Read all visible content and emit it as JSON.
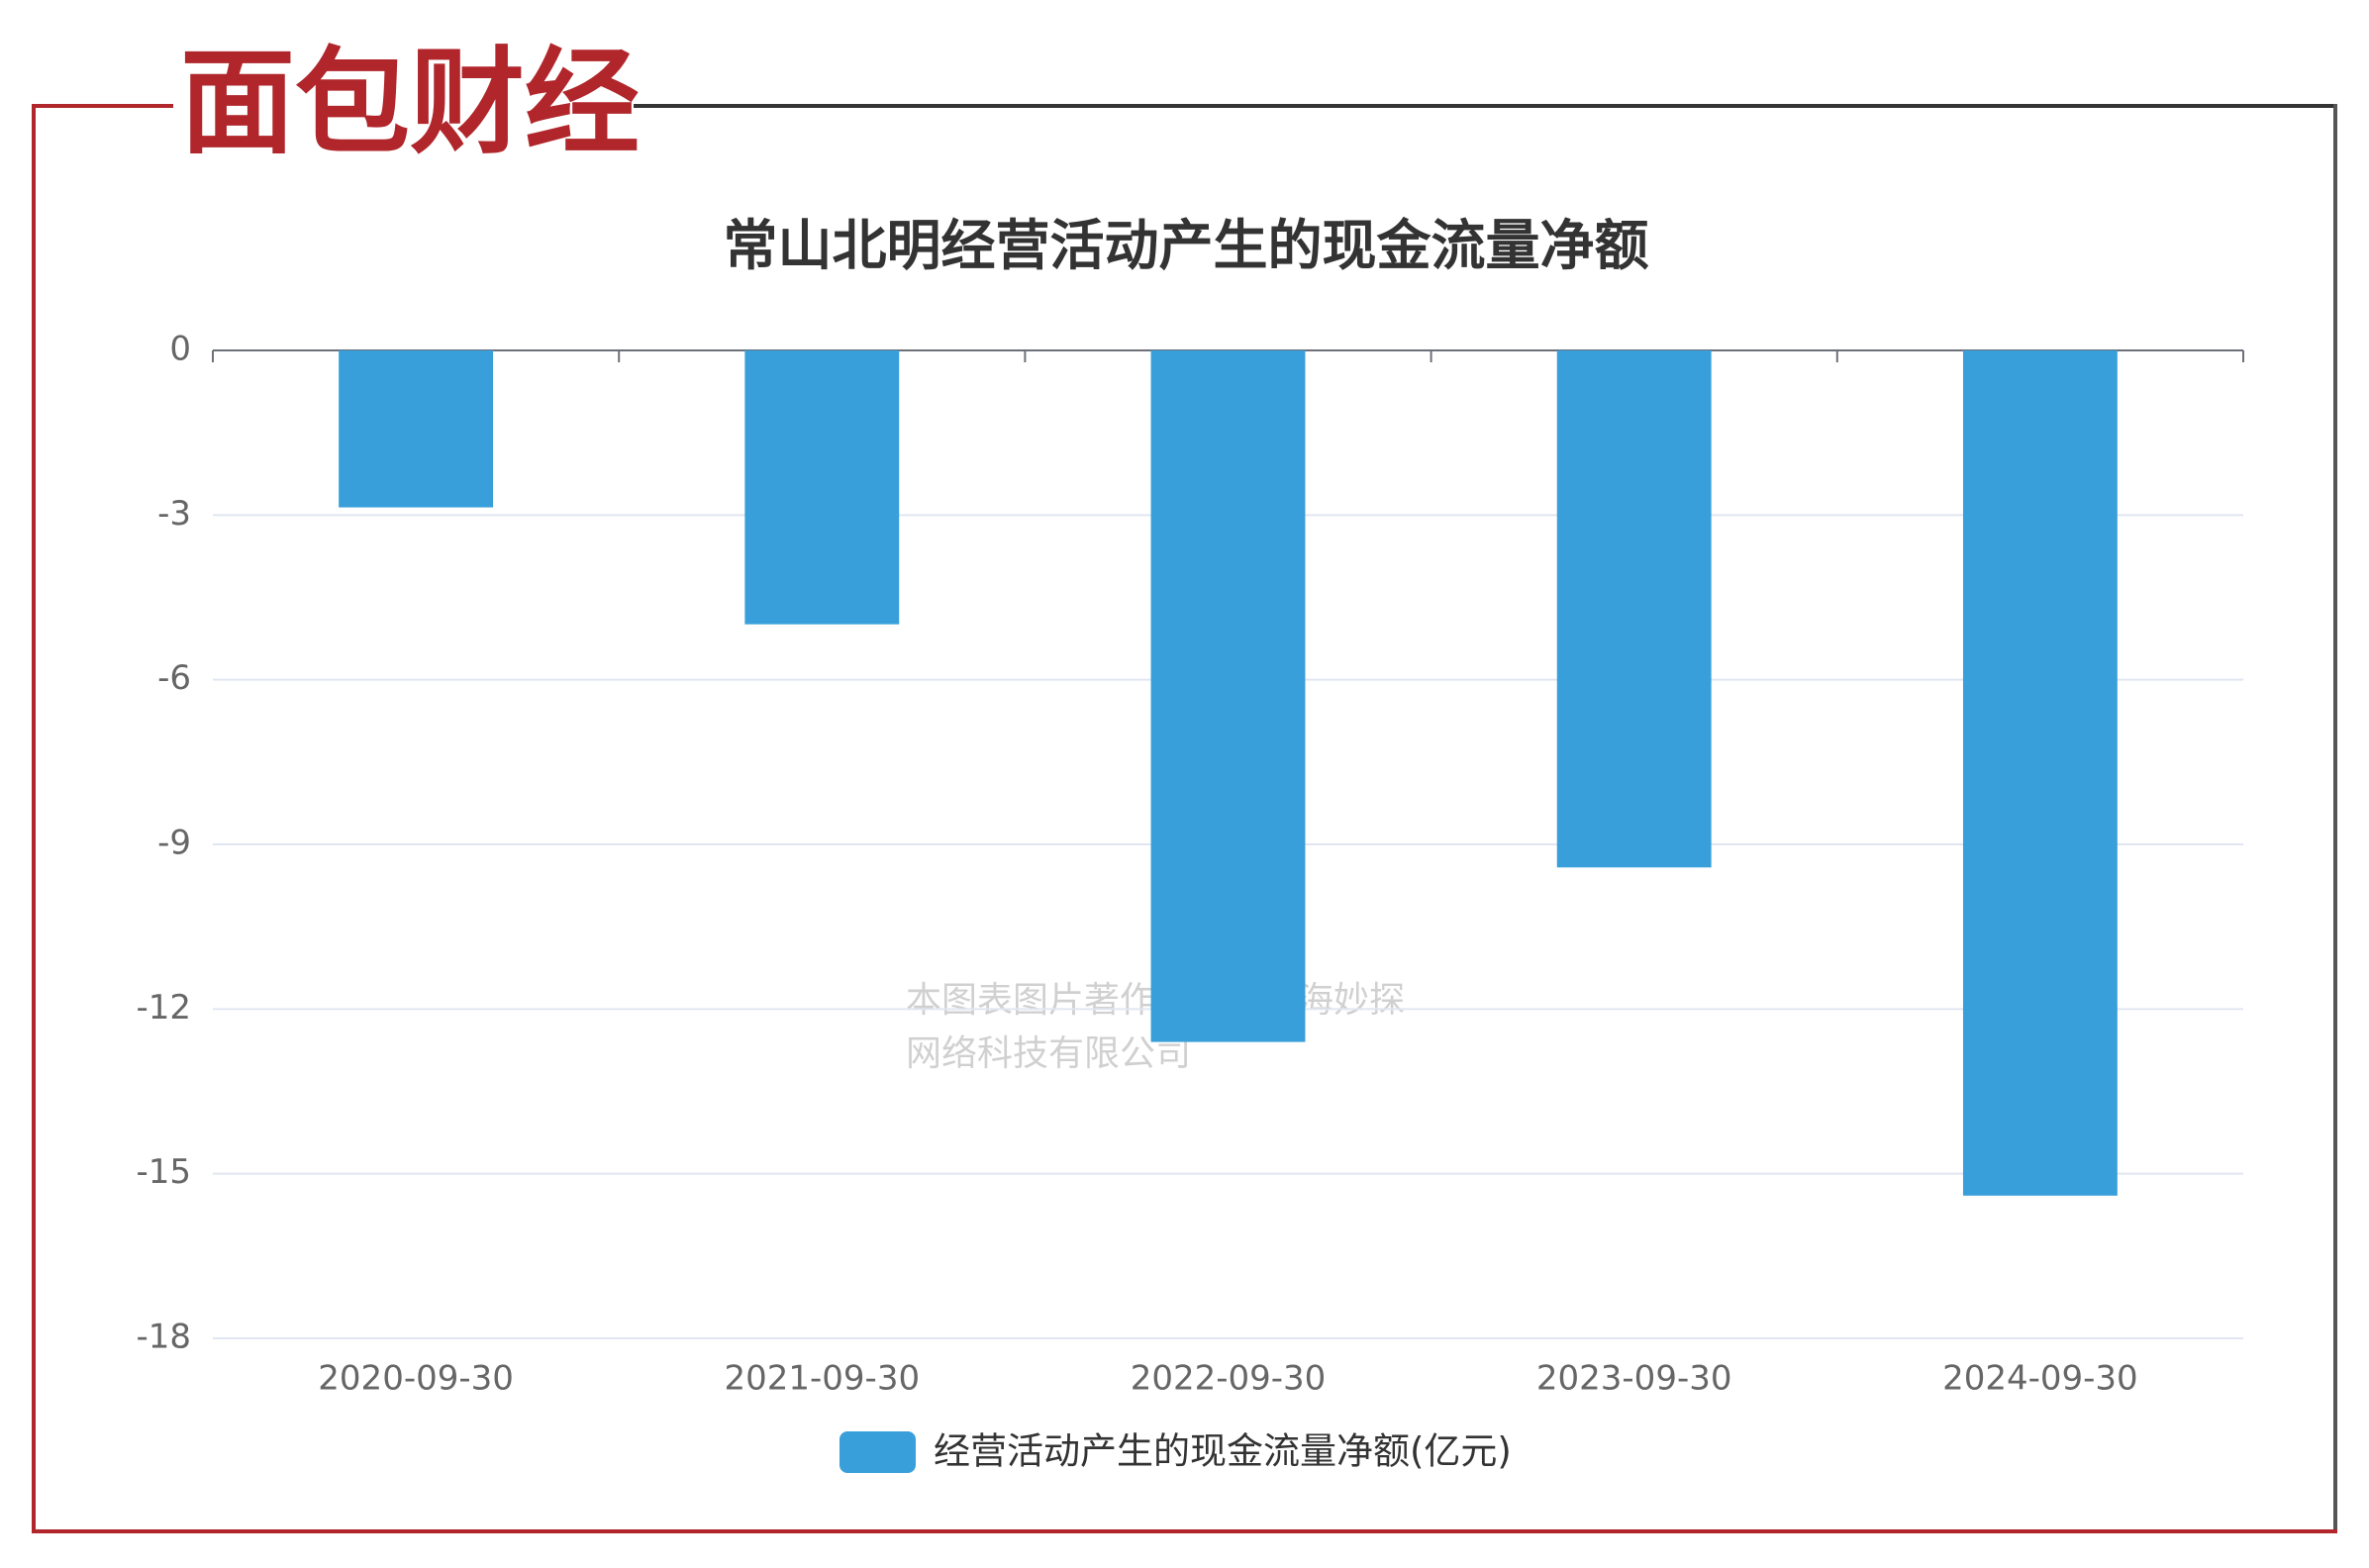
{
  "logo": "面包财经",
  "watermark": [
    "本图表图片著作权属于上海妙探",
    "网络科技有限公司"
  ],
  "chart_data": {
    "type": "bar",
    "title": "常山北明经营活动产生的现金流量净额",
    "categories": [
      "2020-09-30",
      "2021-09-30",
      "2022-09-30",
      "2023-09-30",
      "2024-09-30"
    ],
    "series": [
      {
        "name": "经营活动产生的现金流量净额(亿元)",
        "color": "#389fda",
        "values": [
          -2.86,
          -4.99,
          -12.6,
          -9.42,
          -15.4
        ]
      }
    ],
    "ylim": [
      -18,
      0
    ],
    "yticks": [
      0,
      -3,
      -6,
      -9,
      -12,
      -15,
      -18
    ],
    "grid": true,
    "legend": "bottom"
  }
}
